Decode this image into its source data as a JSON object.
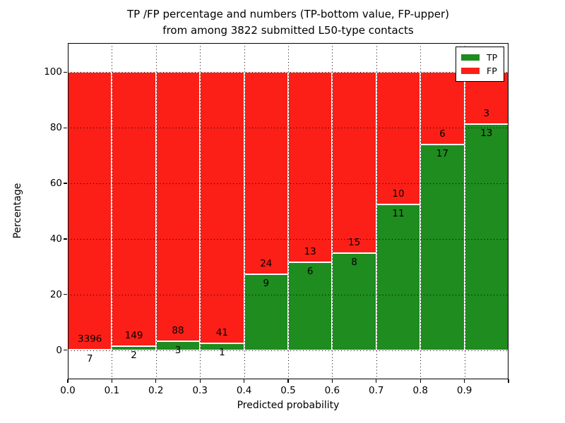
{
  "chart_data": {
    "type": "bar",
    "stacked": true,
    "normalized_to_percent": true,
    "title_line1": "TP /FP percentage and numbers (TP-bottom value, FP-upper)",
    "title_line2": "from among 3822 submitted L50-type contacts",
    "xlabel": "Predicted probability",
    "ylabel": "Percentage",
    "total_contacts": 3822,
    "xlim": [
      0.0,
      1.0
    ],
    "ylim": [
      -10.5,
      110.5
    ],
    "grid": true,
    "x_tick_labels": [
      "0.0",
      "0.1",
      "0.2",
      "0.3",
      "0.4",
      "0.5",
      "0.6",
      "0.7",
      "0.8",
      "0.9"
    ],
    "x_tick_values": [
      0.0,
      0.1,
      0.2,
      0.3,
      0.4,
      0.5,
      0.6,
      0.7,
      0.8,
      0.9
    ],
    "y_tick_labels": [
      "0",
      "20",
      "40",
      "60",
      "80",
      "100"
    ],
    "y_tick_values": [
      0,
      20,
      40,
      60,
      80,
      100
    ],
    "x_gridline_values": [
      0.1,
      0.2,
      0.3,
      0.4,
      0.5,
      0.6,
      0.7,
      0.8,
      0.9
    ],
    "bins": [
      {
        "x0": 0.0,
        "x1": 0.1,
        "tp": 7,
        "fp": 3396
      },
      {
        "x0": 0.1,
        "x1": 0.2,
        "tp": 2,
        "fp": 149
      },
      {
        "x0": 0.2,
        "x1": 0.3,
        "tp": 3,
        "fp": 88
      },
      {
        "x0": 0.3,
        "x1": 0.4,
        "tp": 1,
        "fp": 41
      },
      {
        "x0": 0.4,
        "x1": 0.5,
        "tp": 9,
        "fp": 24
      },
      {
        "x0": 0.5,
        "x1": 0.6,
        "tp": 6,
        "fp": 13
      },
      {
        "x0": 0.6,
        "x1": 0.7,
        "tp": 8,
        "fp": 15
      },
      {
        "x0": 0.7,
        "x1": 0.8,
        "tp": 11,
        "fp": 10
      },
      {
        "x0": 0.8,
        "x1": 0.9,
        "tp": 17,
        "fp": 6
      },
      {
        "x0": 0.9,
        "x1": 1.0,
        "tp": 13,
        "fp": 3
      }
    ],
    "series": [
      {
        "name": "TP",
        "color": "#1e8c1e",
        "counts": [
          7,
          2,
          3,
          1,
          9,
          6,
          8,
          11,
          17,
          13
        ]
      },
      {
        "name": "FP",
        "color": "#fb1f17",
        "counts": [
          3396,
          149,
          88,
          41,
          24,
          13,
          15,
          10,
          6,
          3
        ]
      }
    ],
    "bar_edge_color": "#ffffff",
    "legend": {
      "position": "upper right",
      "entries": [
        {
          "label": "TP",
          "color": "#1e8c1e"
        },
        {
          "label": "FP",
          "color": "#fb1f17"
        }
      ]
    }
  }
}
